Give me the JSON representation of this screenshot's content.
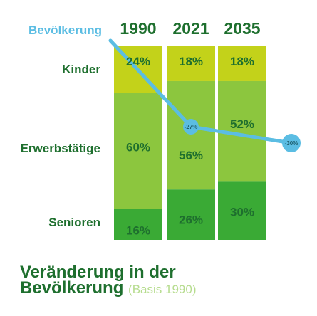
{
  "chart_data": {
    "type": "bar",
    "stacked": true,
    "normalized": true,
    "title": "Veränderung in der Bevölkerung",
    "subtitle": "(Basis 1990)",
    "categories": [
      "1990",
      "2021",
      "2035"
    ],
    "series": [
      {
        "name": "Kinder",
        "values": [
          24,
          18,
          18
        ],
        "color": "#c3d21a"
      },
      {
        "name": "Erwerbstätige",
        "values": [
          60,
          56,
          52
        ],
        "color": "#8cc63e"
      },
      {
        "name": "Senioren",
        "values": [
          16,
          26,
          30
        ],
        "color": "#3aaa35"
      }
    ],
    "line": {
      "name": "Bevölkerung",
      "color": "#5bbde3",
      "points": [
        {
          "x": "2021",
          "label": "-27%"
        },
        {
          "x": "2035",
          "label": "-30%"
        }
      ]
    },
    "colors": {
      "text": "#1e6f2e",
      "basis": "#b6dc8e"
    }
  },
  "footer": {
    "title_line1": "Veränderung in der",
    "title_line2": "Bevölkerung",
    "basis": "(Basis 1990)"
  }
}
